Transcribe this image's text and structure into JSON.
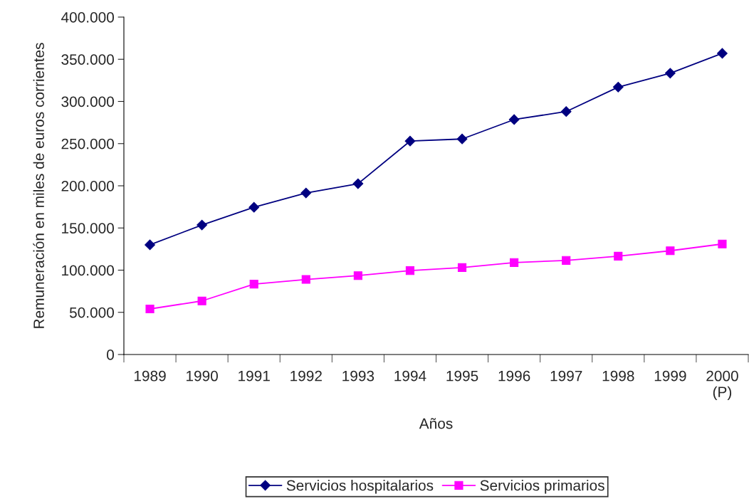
{
  "chart_data": {
    "type": "line",
    "xlabel": "Años",
    "ylabel": "Remuneración en miles de euros corrientes",
    "categories": [
      "1989",
      "1990",
      "1991",
      "1992",
      "1993",
      "1994",
      "1995",
      "1996",
      "1997",
      "1998",
      "1999",
      "2000\n(P)"
    ],
    "series": [
      {
        "name": "Servicios hospitalarios",
        "color": "#000080",
        "marker": "diamond",
        "values": [
          130000,
          153500,
          174500,
          191500,
          202500,
          253000,
          255500,
          278500,
          288000,
          317000,
          333500,
          357000
        ]
      },
      {
        "name": "Servicios primarios",
        "color": "#ff00ff",
        "marker": "square",
        "values": [
          54000,
          63500,
          83500,
          89000,
          93500,
          99500,
          103000,
          109000,
          111500,
          116500,
          123000,
          131000
        ]
      }
    ],
    "ylim": [
      0,
      400000
    ],
    "yticks": [
      {
        "value": 0,
        "label": "0"
      },
      {
        "value": 50000,
        "label": "50.000"
      },
      {
        "value": 100000,
        "label": "100.000"
      },
      {
        "value": 150000,
        "label": "150.000"
      },
      {
        "value": 200000,
        "label": "200.000"
      },
      {
        "value": 250000,
        "label": "250.000"
      },
      {
        "value": 300000,
        "label": "300.000"
      },
      {
        "value": 350000,
        "label": "350.000"
      },
      {
        "value": 400000,
        "label": "400.000"
      }
    ],
    "grid": false,
    "legend": "bottom",
    "line_style": "solid"
  }
}
